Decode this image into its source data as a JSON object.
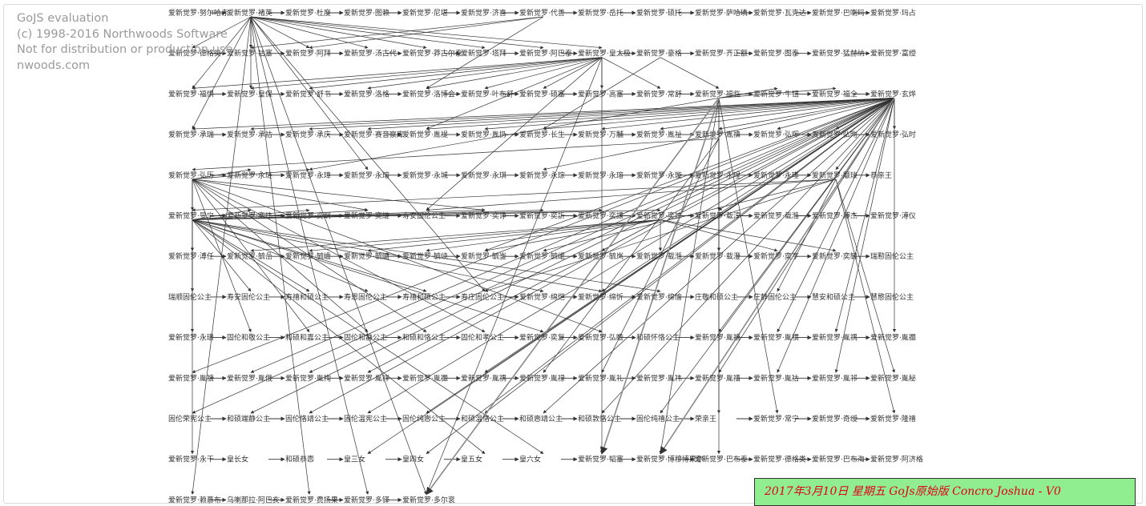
{
  "watermark": {
    "lines": [
      "GoJS evaluation",
      "(c) 1998-2016 Northwoods Software",
      "Not for distribution or production use",
      "nwoods.com"
    ]
  },
  "banner": {
    "text": "2017年3月10日 星期五 GoJs原始版  Concro Joshua - V0",
    "color": "#e0001a",
    "background": "#90ee90"
  },
  "colors": {
    "link": "#333333",
    "node_text": "#333333",
    "frame": "#d9d9d9"
  },
  "tree": {
    "rows": [
      [
        "爱新觉罗·努尔哈赤",
        "爱新觉罗·褚英",
        "爱新觉罗·杜度",
        "爱新觉罗·图赖",
        "爱新觉罗·尼堪",
        "爱新觉罗·济喜",
        "爱新觉罗·代善",
        "爱新觉罗·岳托",
        "爱新觉罗·硕托",
        "爱新觉罗·萨哈璘",
        "爱新觉罗·瓦克达",
        "爱新觉罗·巴喇玛",
        "爱新觉罗·玛占"
      ],
      [
        "爱新觉罗·德格类",
        "爱新觉罗·祜塞",
        "爱新觉罗·阿拜",
        "爱新觉罗·汤古代",
        "爱新觉罗·莽古尔泰",
        "爱新觉罗·塔拜",
        "爱新觉罗·阿巴泰",
        "爱新觉罗·皇太极",
        "爱新觉罗·豪格",
        "爱新觉罗·齐正额",
        "爱新觉罗·图泰",
        "爱新觉罗·猛赫纳",
        "爱新觉罗·富绶"
      ],
      [
        "爱新觉罗·福惧",
        "爱新觉罗·皇保",
        "爱新觉罗·舒书",
        "爱新觉罗·洛格",
        "爱新觉罗·洛博会",
        "爱新觉罗·叶布舒",
        "爱新觉罗·硕塞",
        "爱新觉罗·高塞",
        "爱新觉罗·常舒",
        "爱新觉罗·福临",
        "爱新觉罗·牛钮",
        "爱新觉罗·福全",
        "爱新觉罗·玄烨"
      ],
      [
        "爱新觉罗·承瑞",
        "爱新觉罗·承祜",
        "爱新觉罗·承庆",
        "爱新觉罗·赛音察库",
        "爱新觉罗·胤褆",
        "爱新觉罗·胤扔",
        "爱新觉罗·长生",
        "爱新觉罗·万黼",
        "爱新觉罗·胤祉",
        "爱新觉罗·胤禛",
        "爱新觉罗·弘晖",
        "爱新觉罗·弘昀",
        "爱新觉罗·弘时"
      ],
      [
        "爱新觉罗·弘历",
        "爱新觉罗·永琏",
        "爱新觉罗·永璋",
        "爱新觉罗·永瑢",
        "爱新觉罗·永城",
        "爱新觉罗·永琪",
        "爱新觉罗·永琮",
        "爱新觉罗·永瑢",
        "爱新觉罗·永璇",
        "爱新觉罗·永瑆",
        "爱新觉罗·永璂",
        "爱新觉罗·颙琰",
        "恭亲王"
      ],
      [
        "爱新觉罗·旻宁",
        "爱新觉罗·奕纬",
        "爱新觉罗·奕纲",
        "爱新觉罗·奕継",
        "寿安固伦公主",
        "爱新觉罗·奕诤",
        "爱新觉罗·奕訢",
        "爱新觉罗·奕譞",
        "爱新觉罗·奕誴",
        "爱新觉罗·载淳",
        "爱新觉罗·载湉",
        "爱新觉罗·溥杰",
        "爱新觉罗·溥仪"
      ],
      [
        "爱新觉罗·溥任",
        "爱新觉罗·毓嵒",
        "爱新觉罗·毓嶦",
        "爱新觉罗·毓嵣",
        "爱新觉罗·毓峣",
        "爱新觉罗·毓崟",
        "爱新觉罗·毓岷",
        "爱新觉罗·毓岚",
        "爱新觉罗·载湉",
        "爱新觉罗·载澄",
        "爱新觉罗·奕亨",
        "爱新觉罗·奕毓",
        "瑞懃固伦公主"
      ],
      [
        "瑞顺固伦公主",
        "寿安固伦公主",
        "寿禧和硕公主",
        "寿恩固伦公主",
        "寿禧和硕公主",
        "寿庄固伦公主",
        "爱新觉罗·绵恺",
        "爱新觉罗·绵忻",
        "爱新觉罗·绵愉",
        "庄敬和硕公主",
        "庄静固伦公主",
        "慧安和硕公主",
        "慧愍固伦公主"
      ],
      [
        "爱新觉罗·永璜",
        "固伦和敬公主",
        "和硕和嘉公主",
        "固伦和静公主",
        "和硕和恪公主",
        "固伦和孝公主",
        "爱新觉罗·奕复",
        "爱新觉罗·弘瞻",
        "和硕怀恪公主",
        "爱新觉罗·胤禟",
        "爱新觉罗·胤禩",
        "爱新觉罗·胤禑",
        "爱新觉罗·胤禵"
      ],
      [
        "爱新觉罗·胤禟",
        "爱新觉罗·胤俄",
        "爱新觉罗·胤祹",
        "爱新觉罗·胤祥",
        "爱新觉罗·胤禵",
        "爱新觉罗·胤禑",
        "爱新觉罗·胤禄",
        "爱新觉罗·胤礼",
        "爱新觉罗·胤祎",
        "爱新觉罗·胤禧",
        "爱新觉罗·胤祜",
        "爱新觉罗·胤祁",
        "爱新觉罗·胤秘"
      ],
      [
        "固伦荣宪公主",
        "和硕端静公主",
        "固伦恪靖公主",
        "固伦温宪公主",
        "固伦纯悫公主",
        "和硕温恪公主",
        "和硕悫靖公主",
        "和硕敦恪公主",
        "固伦纯禧公主",
        "荣亲王",
        "爱新觉罗·常宁",
        "爱新觉罗·奇绶",
        "爱新觉罗·隆禧"
      ],
      [
        "爱新觉罗·永干",
        "皇长女",
        "和硕恭悫",
        "皇三女",
        "皇四女",
        "皇五女",
        "皇六女",
        "爱新觉罗·韬塞",
        "爱新觉罗·博穆博果尔",
        "爱新觉罗·巴布泰",
        "爱新觉罗·德格类",
        "爱新觉罗·巴布海",
        "爱新觉罗·阿济格"
      ],
      [
        "爱新觉罗·赖慕布",
        "乌喇那拉·阿巴亥",
        "爱新觉罗·费扬果",
        "爱新觉罗·多铎",
        "爱新觉罗·多尔衮"
      ]
    ]
  }
}
